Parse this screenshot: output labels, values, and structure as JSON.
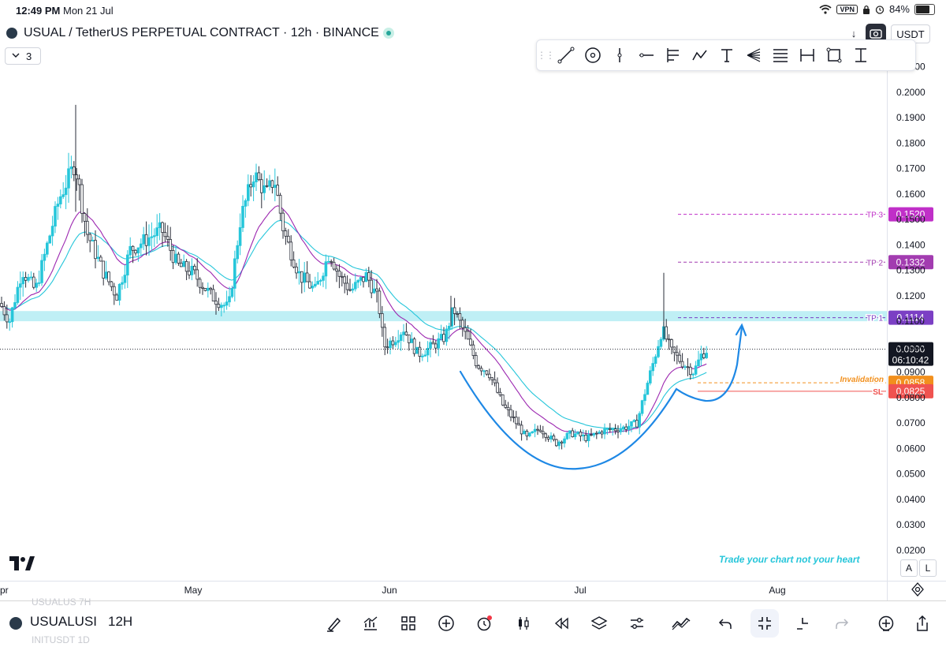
{
  "status_bar": {
    "time": "12:49 PM",
    "date": "Mon 21 Jul",
    "vpn": "VPN",
    "battery": "84%",
    "battery_level": 0.84
  },
  "header": {
    "title": "USUAL / TetherUS PERPETUAL CONTRACT · 12h · BINANCE",
    "currency": "USDT",
    "down_arrow": "↓"
  },
  "layout_count": "3",
  "drawing_toolbar": {
    "tools": [
      "trend-line",
      "circle",
      "vertical-line",
      "horizontal-ray",
      "pitchfork",
      "path",
      "text",
      "fib-fan",
      "fib-levels",
      "date-range",
      "rectangle",
      "price-range"
    ]
  },
  "chart_data": {
    "type": "candlestick",
    "price_axis": {
      "labels": [
        "0.2100",
        "0.2000",
        "0.1900",
        "0.1800",
        "0.1700",
        "0.1600",
        "0.1500",
        "0.1400",
        "0.1300",
        "0.1200",
        "0.1100",
        "0.1000",
        "0.0900",
        "0.0800",
        "0.0700",
        "0.0600",
        "0.0500",
        "0.0400",
        "0.0300",
        "0.0200"
      ],
      "range": [
        0.02,
        0.21
      ]
    },
    "time_axis": {
      "labels": [
        "pr",
        "May",
        "Jun",
        "Jul",
        "Aug"
      ]
    },
    "current_price": "0.0990",
    "countdown": "06:10:42",
    "levels": [
      {
        "label": "TP 3",
        "value": "0.1520",
        "color": "#c02fc8"
      },
      {
        "label": "TP 2",
        "value": "0.1332",
        "color": "#a23cb0"
      },
      {
        "label": "TP 1",
        "value": "0.1114",
        "color": "#7b3fc4"
      },
      {
        "label": "Invalidation",
        "value": "0.0858",
        "color": "#f2901d"
      },
      {
        "label": "SL",
        "value": "0.0825",
        "color": "#f05350"
      }
    ],
    "support_zone": [
      0.11,
      0.114
    ],
    "annotation": "Trade your chart not your heart"
  },
  "axis_buttons": {
    "auto": "A",
    "log": "L"
  },
  "bottom_bar": {
    "symbol": "USUALUSI",
    "interval": "12H",
    "ghost_above": "USUALUS  7H",
    "ghost_below": "INITUSDT  1D"
  },
  "colors": {
    "candle_up": "#26c6da",
    "candle_down": "#ffffff",
    "ema_fast": "#9c27b0",
    "ema_slow": "#26c6da",
    "curve": "#1e88e5"
  }
}
